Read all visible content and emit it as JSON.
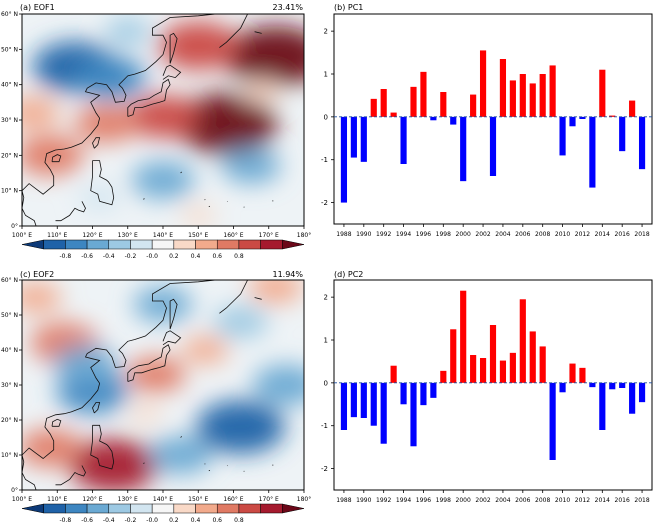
{
  "chart_data": [
    {
      "type": "heatmap",
      "panel_label": "(a) EOF1",
      "variance_label": "23.41%",
      "xlabel": "",
      "ylabel": "",
      "x_ticks": [
        "100° E",
        "110° E",
        "120° E",
        "130° E",
        "140° E",
        "150° E",
        "160° E",
        "170° E",
        "180°"
      ],
      "y_ticks": [
        "0°",
        "10° N",
        "20° N",
        "30° N",
        "40° N",
        "50° N",
        "60° N"
      ],
      "xlim": [
        100,
        180
      ],
      "ylim": [
        0,
        60
      ],
      "colorbar_ticks": [
        "-0.8",
        "-0.6",
        "-0.4",
        "-0.2",
        "-0.0",
        "0.2",
        "0.4",
        "0.6",
        "0.8"
      ],
      "colorbar_colors": [
        "#0d3a78",
        "#1f62a8",
        "#3d86c1",
        "#6aa9d3",
        "#9dc9e3",
        "#d2e5f0",
        "#f6f6f6",
        "#f9d9c7",
        "#f2aa8c",
        "#e07a64",
        "#cb4a44",
        "#a51a2e",
        "#6b0718"
      ],
      "pattern": [
        {
          "lon": 172,
          "lat": 48,
          "val": 0.9
        },
        {
          "lon": 150,
          "lat": 51,
          "val": 0.65
        },
        {
          "lon": 158,
          "lat": 29,
          "val": 0.9
        },
        {
          "lon": 140,
          "lat": 31,
          "val": 0.55
        },
        {
          "lon": 124,
          "lat": 29,
          "val": 0.45
        },
        {
          "lon": 108,
          "lat": 20,
          "val": 0.5
        },
        {
          "lon": 103,
          "lat": 32,
          "val": 0.35
        },
        {
          "lon": 115,
          "lat": 45,
          "val": -0.7
        },
        {
          "lon": 125,
          "lat": 42,
          "val": -0.55
        },
        {
          "lon": 130,
          "lat": 55,
          "val": -0.25
        },
        {
          "lon": 140,
          "lat": 13,
          "val": -0.45
        },
        {
          "lon": 165,
          "lat": 17,
          "val": -0.4
        },
        {
          "lon": 168,
          "lat": 38,
          "val": 0.15
        },
        {
          "lon": 122,
          "lat": 8,
          "val": -0.2
        },
        {
          "lon": 150,
          "lat": 3,
          "val": 0.1
        }
      ]
    },
    {
      "type": "bar",
      "panel_label": "(b) PC1",
      "categories": [
        "1988",
        "1989",
        "1990",
        "1991",
        "1992",
        "1993",
        "1994",
        "1995",
        "1996",
        "1997",
        "1998",
        "1999",
        "2000",
        "2001",
        "2002",
        "2003",
        "2004",
        "2005",
        "2006",
        "2007",
        "2008",
        "2009",
        "2010",
        "2011",
        "2012",
        "2013",
        "2014",
        "2015",
        "2016",
        "2017",
        "2018"
      ],
      "x_tick_labels": [
        "1988",
        "1990",
        "1992",
        "1994",
        "1996",
        "1998",
        "2000",
        "2002",
        "2004",
        "2006",
        "2008",
        "2010",
        "2012",
        "2014",
        "2016",
        "2018"
      ],
      "values": [
        -2.0,
        -0.95,
        -1.05,
        0.42,
        0.65,
        0.1,
        -1.1,
        0.7,
        1.05,
        -0.08,
        0.58,
        -0.18,
        -1.5,
        0.52,
        1.55,
        -1.38,
        1.35,
        0.85,
        1.0,
        0.78,
        1.0,
        1.2,
        -0.9,
        -0.22,
        -0.05,
        -1.65,
        1.1,
        0.03,
        -0.8,
        0.38,
        -1.22
      ],
      "ylim": [
        -2.5,
        2.4
      ],
      "y_ticks": [
        "-2",
        "-1",
        "0",
        "1",
        "2"
      ],
      "xlabel": "",
      "ylabel": "",
      "positive_color": "#ff0000",
      "negative_color": "#0000ff",
      "zero_line_color": "#1f4e9c"
    },
    {
      "type": "heatmap",
      "panel_label": "(c) EOF2",
      "variance_label": "11.94%",
      "xlabel": "",
      "ylabel": "",
      "x_ticks": [
        "100° E",
        "110° E",
        "120° E",
        "130° E",
        "140° E",
        "150° E",
        "160° E",
        "170° E",
        "180°"
      ],
      "y_ticks": [
        "0°",
        "10° N",
        "20° N",
        "30° N",
        "40° N",
        "50° N",
        "60° N"
      ],
      "xlim": [
        100,
        180
      ],
      "ylim": [
        0,
        60
      ],
      "colorbar_ticks": [
        "-0.8",
        "-0.6",
        "-0.4",
        "-0.2",
        "-0.0",
        "0.2",
        "0.4",
        "0.6",
        "0.8"
      ],
      "colorbar_colors": [
        "#0d3a78",
        "#1f62a8",
        "#3d86c1",
        "#6aa9d3",
        "#9dc9e3",
        "#d2e5f0",
        "#f6f6f6",
        "#f9d9c7",
        "#f2aa8c",
        "#e07a64",
        "#cb4a44",
        "#a51a2e",
        "#6b0718"
      ],
      "pattern": [
        {
          "lon": 126,
          "lat": 7,
          "val": 0.75
        },
        {
          "lon": 108,
          "lat": 12,
          "val": 0.45
        },
        {
          "lon": 112,
          "lat": 42,
          "val": 0.5
        },
        {
          "lon": 104,
          "lat": 55,
          "val": 0.3
        },
        {
          "lon": 138,
          "lat": 33,
          "val": 0.4
        },
        {
          "lon": 152,
          "lat": 40,
          "val": 0.25
        },
        {
          "lon": 172,
          "lat": 58,
          "val": 0.35
        },
        {
          "lon": 120,
          "lat": 28,
          "val": -0.55
        },
        {
          "lon": 118,
          "lat": 36,
          "val": -0.45
        },
        {
          "lon": 162,
          "lat": 18,
          "val": -0.75
        },
        {
          "lon": 145,
          "lat": 10,
          "val": -0.45
        },
        {
          "lon": 140,
          "lat": 53,
          "val": -0.4
        },
        {
          "lon": 162,
          "lat": 48,
          "val": -0.35
        },
        {
          "lon": 175,
          "lat": 30,
          "val": -0.5
        },
        {
          "lon": 135,
          "lat": 22,
          "val": 0.1
        }
      ]
    },
    {
      "type": "bar",
      "panel_label": "(d) PC2",
      "categories": [
        "1988",
        "1989",
        "1990",
        "1991",
        "1992",
        "1993",
        "1994",
        "1995",
        "1996",
        "1997",
        "1998",
        "1999",
        "2000",
        "2001",
        "2002",
        "2003",
        "2004",
        "2005",
        "2006",
        "2007",
        "2008",
        "2009",
        "2010",
        "2011",
        "2012",
        "2013",
        "2014",
        "2015",
        "2016",
        "2017",
        "2018"
      ],
      "x_tick_labels": [
        "1988",
        "1990",
        "1992",
        "1994",
        "1996",
        "1998",
        "2000",
        "2002",
        "2004",
        "2006",
        "2008",
        "2010",
        "2012",
        "2014",
        "2016",
        "2018"
      ],
      "values": [
        -1.1,
        -0.8,
        -0.82,
        -1.0,
        -1.42,
        0.4,
        -0.5,
        -1.48,
        -0.52,
        -0.35,
        0.28,
        1.25,
        2.15,
        0.65,
        0.58,
        1.35,
        0.52,
        0.7,
        1.95,
        1.2,
        0.85,
        -1.8,
        -0.22,
        0.45,
        0.35,
        -0.1,
        -1.1,
        -0.15,
        -0.12,
        -0.72,
        -0.45
      ],
      "ylim": [
        -2.5,
        2.4
      ],
      "y_ticks": [
        "-2",
        "-1",
        "0",
        "1",
        "2"
      ],
      "xlabel": "",
      "ylabel": "",
      "positive_color": "#ff0000",
      "negative_color": "#0000ff",
      "zero_line_color": "#1f4e9c"
    }
  ]
}
